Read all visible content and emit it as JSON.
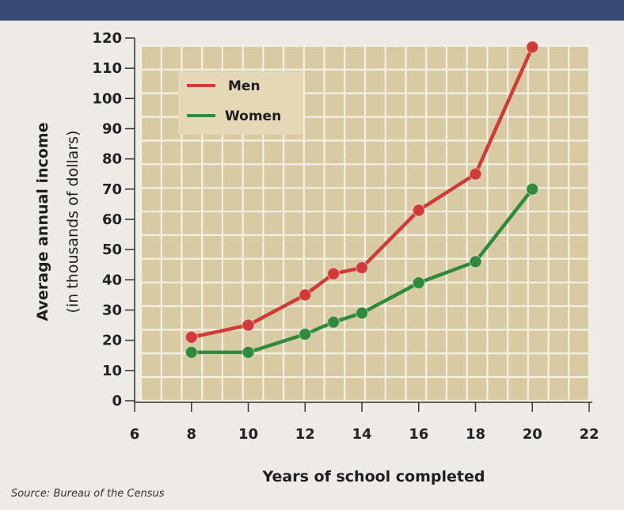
{
  "chart_data": {
    "type": "line",
    "title": "",
    "xlabel": "Years of school completed",
    "ylabel": "Average annual income",
    "ylabel_sub": "(in thousands of dollars)",
    "x_ticks": [
      6,
      8,
      10,
      12,
      14,
      16,
      18,
      20,
      22
    ],
    "y_ticks": [
      0,
      10,
      20,
      30,
      40,
      50,
      60,
      70,
      80,
      90,
      100,
      110,
      120
    ],
    "xlim": [
      6,
      22
    ],
    "ylim": [
      0,
      120
    ],
    "grid": true,
    "legend_position": "top-left",
    "series": [
      {
        "name": "Men",
        "color": "#d03a38",
        "points": [
          [
            8,
            21
          ],
          [
            10,
            25
          ],
          [
            12,
            35
          ],
          [
            13,
            42
          ],
          [
            14,
            44
          ],
          [
            16,
            63
          ],
          [
            18,
            75
          ],
          [
            20,
            117
          ]
        ]
      },
      {
        "name": "Women",
        "color": "#2f8a3c",
        "points": [
          [
            8,
            16
          ],
          [
            10,
            16
          ],
          [
            12,
            22
          ],
          [
            13,
            26
          ],
          [
            14,
            29
          ],
          [
            16,
            39
          ],
          [
            18,
            46
          ],
          [
            20,
            70
          ]
        ]
      }
    ],
    "source": "Source: Bureau of the Census"
  },
  "colors": {
    "plot_background": "#d8cba4",
    "grid": "#f4f0e4",
    "header_band": "#384a78"
  }
}
